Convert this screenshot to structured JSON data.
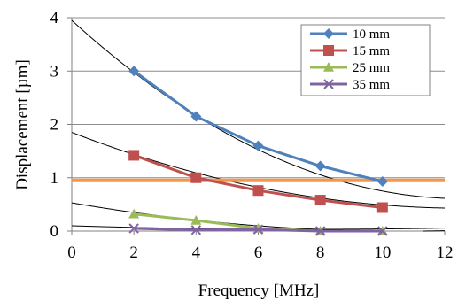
{
  "chart_data": {
    "type": "line",
    "xlabel": "Frequency [MHz]",
    "ylabel": "Displacement [µm]",
    "xlim": [
      0,
      12
    ],
    "ylim": [
      0,
      4
    ],
    "xticks": [
      "0",
      "2",
      "4",
      "6",
      "8",
      "10",
      "12"
    ],
    "yticks": [
      "0",
      "1",
      "2",
      "3",
      "4"
    ],
    "grid": "horizontal",
    "legend_position": "top-right",
    "x": [
      2,
      4,
      6,
      8,
      10
    ],
    "series": [
      {
        "name": "10 mm",
        "color": "#4f81bd",
        "marker": "diamond",
        "values": [
          3.0,
          2.15,
          1.6,
          1.22,
          0.93
        ]
      },
      {
        "name": "15 mm",
        "color": "#c0504d",
        "marker": "square",
        "values": [
          1.42,
          1.0,
          0.76,
          0.58,
          0.44
        ]
      },
      {
        "name": "25 mm",
        "color": "#9bbb59",
        "marker": "triangle",
        "values": [
          0.32,
          0.2,
          0.05,
          0.0,
          0.0
        ]
      },
      {
        "name": "35 mm",
        "color": "#8064a2",
        "marker": "x",
        "values": [
          0.05,
          0.02,
          0.03,
          0.0,
          0.0
        ]
      }
    ],
    "trendlines": [
      {
        "color": "#000000",
        "type": "polynomial",
        "coef": [
          3.95,
          -0.53,
          0.021
        ]
      },
      {
        "color": "#000000",
        "type": "polynomial",
        "coef": [
          1.85,
          -0.225,
          0.0089
        ]
      },
      {
        "color": "#000000",
        "type": "polynomial",
        "coef": [
          0.53,
          -0.1,
          0.0047
        ]
      },
      {
        "color": "#000000",
        "type": "polynomial",
        "coef": [
          0.1,
          -0.018,
          0.0012
        ]
      }
    ],
    "reference_line": {
      "y": 0.95,
      "color": "#f79646"
    }
  }
}
